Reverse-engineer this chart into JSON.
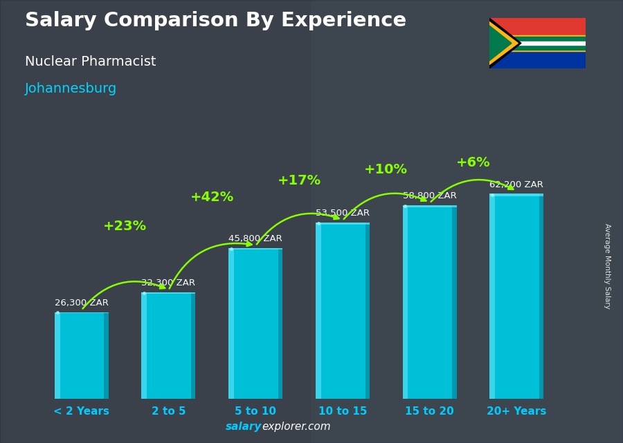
{
  "title": "Salary Comparison By Experience",
  "subtitle": "Nuclear Pharmacist",
  "city": "Johannesburg",
  "categories": [
    "< 2 Years",
    "2 to 5",
    "5 to 10",
    "10 to 15",
    "15 to 20",
    "20+ Years"
  ],
  "values": [
    26300,
    32300,
    45800,
    53500,
    58800,
    62200
  ],
  "salary_labels": [
    "26,300 ZAR",
    "32,300 ZAR",
    "45,800 ZAR",
    "53,500 ZAR",
    "58,800 ZAR",
    "62,200 ZAR"
  ],
  "pct_labels": [
    "+23%",
    "+42%",
    "+17%",
    "+10%",
    "+6%"
  ],
  "bar_color_main": "#00c0d8",
  "bar_color_light": "#40d8f0",
  "bar_color_dark": "#0090a8",
  "bg_left_color": "#4a4a5a",
  "bg_right_color": "#6a7a8a",
  "title_color": "#ffffff",
  "subtitle_color": "#ffffff",
  "city_color": "#00d4ff",
  "salary_label_color": "#ffffff",
  "pct_color": "#88ff00",
  "xlabel_color": "#00ccff",
  "footer_salary": "salary",
  "footer_rest": "explorer.com",
  "footer_color": "#00ccff",
  "watermark_salary_color": "#00ccff",
  "watermark_rest_color": "#ffffff",
  "ylabel_text": "Average Monthly Salary",
  "ylim": [
    0,
    78000
  ],
  "bar_width": 0.62
}
